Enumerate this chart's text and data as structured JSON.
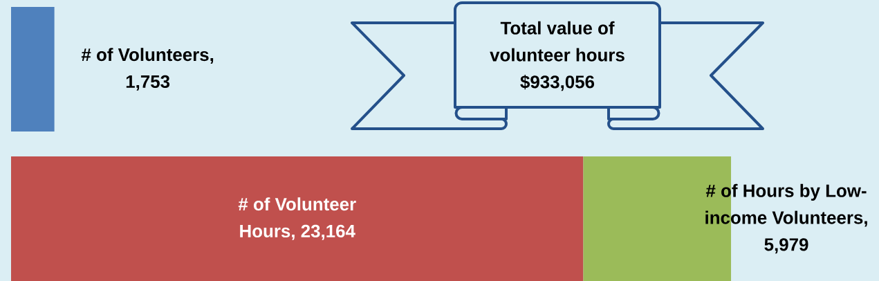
{
  "chart_data": {
    "type": "bar",
    "orientation": "horizontal",
    "stacked": true,
    "categories": [
      null,
      null
    ],
    "series": [
      {
        "color": "#4f81bd",
        "values": [
          1753,
          null
        ],
        "value_labels": [
          "# of Volunteers, 1,753",
          null
        ]
      },
      {
        "color": "#c0504d",
        "values": [
          null,
          23164
        ],
        "value_labels": [
          null,
          "# of Volunteer Hours, 23,164"
        ]
      },
      {
        "color": "#9bbb59",
        "values": [
          null,
          5979
        ],
        "value_labels": [
          null,
          "# of Hours by Low-income Volunteers, 5,979"
        ]
      }
    ],
    "annotations": [
      "Total value of volunteer hours $933,056"
    ]
  }
}
